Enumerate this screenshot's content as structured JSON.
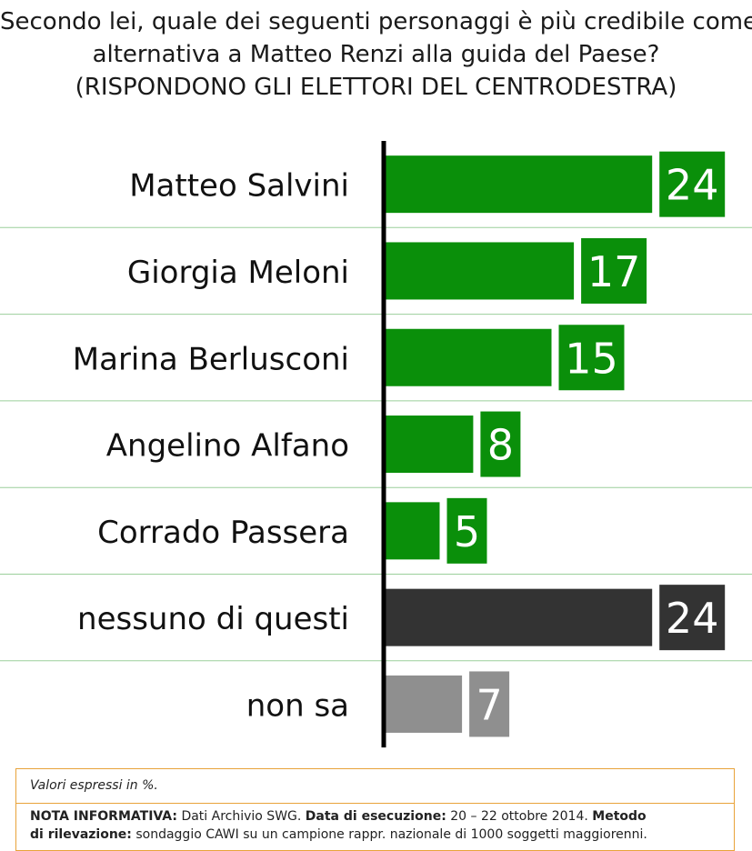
{
  "title": {
    "line1": "Secondo lei, quale dei seguenti personaggi è più credibile come",
    "line2": "alternativa a Matteo Renzi alla guida del Paese?",
    "line3": "(RISPONDONO GLI ELETTORI DEL CENTRODESTRA)"
  },
  "chart_data": {
    "type": "bar",
    "orientation": "horizontal",
    "categories": [
      "Matteo Salvini",
      "Giorgia Meloni",
      "Marina Berlusconi",
      "Angelino Alfano",
      "Corrado Passera",
      "nessuno di questi",
      "non sa"
    ],
    "values": [
      24,
      17,
      15,
      8,
      5,
      24,
      7
    ],
    "bar_colors": [
      "#0a8f0a",
      "#0a8f0a",
      "#0a8f0a",
      "#0a8f0a",
      "#0a8f0a",
      "#333333",
      "#8f8f8f"
    ],
    "unit": "%",
    "data_labels": true,
    "grid": false
  },
  "footer": {
    "unit_note": "Valori espressi in %.",
    "nota_label": "NOTA INFORMATIVA:",
    "nota_text": "Dati Archivio SWG.",
    "date_label": "Data di esecuzione:",
    "date_text": "20 – 22 ottobre 2014.",
    "method_label_1": "Metodo",
    "method_label_2": "di rilevazione:",
    "method_text": "sondaggio CAWI su un campione rappr. nazionale di 1000 soggetti maggiorenni."
  }
}
